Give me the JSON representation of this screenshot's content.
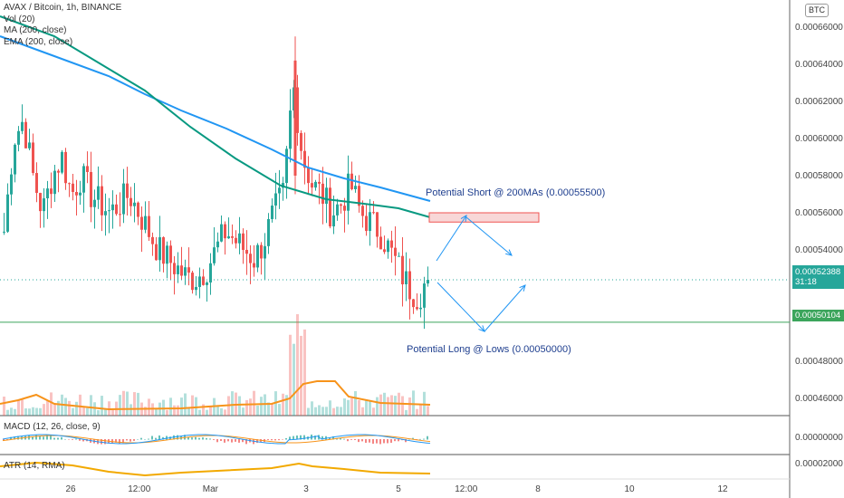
{
  "legend": {
    "symbol": "AVAX / Bitcoin, 1h, BINANCE",
    "vol": "Vol (20)",
    "ma": "MA (200, close)",
    "ema": "EMA (200, close)"
  },
  "indicators": {
    "macd": "MACD (12, 26, close, 9)",
    "atr": "ATR (14, RMA)"
  },
  "currency_badge": "BTC",
  "price_label": {
    "price": "0.00052388",
    "countdown": "31:18"
  },
  "level_label": "0.00050104",
  "annotations": {
    "short": "Potential Short @ 200MAs (0.00055500)",
    "long": "Potential Long @ Lows (0.00050000)"
  },
  "colors": {
    "up": "#26a69a",
    "down": "#ef5350",
    "ma": "#2196f3",
    "ema": "#089981",
    "vol_ma": "#f7931a",
    "atr": "#f2a900",
    "level": "#3ca55c",
    "zone": "#f8d7d7",
    "arrows": "#2196f3"
  },
  "chart_data": {
    "type": "candlestick",
    "y_axis_ticks": [
      "0.00066000",
      "0.00064000",
      "0.00062000",
      "0.00060000",
      "0.00058000",
      "0.00056000",
      "0.00054000",
      "0.00048000",
      "0.00046000"
    ],
    "indicator_ticks": {
      "macd": "0.00000000",
      "atr": "0.00002000"
    },
    "ylim": [
      0.00044,
      0.00067
    ],
    "x_axis_ticks": [
      "26",
      "12:00",
      "Mar",
      "3",
      "5",
      "12:00",
      "8",
      "10",
      "12"
    ],
    "last_price": 0.00052388,
    "horizontal_level": 0.00050104,
    "short_zone": [
      0.000555,
      0.00056
    ],
    "short_target": 0.000555,
    "long_target": 0.0005,
    "close_path": [
      0.00055,
      0.0006,
      0.00061,
      0.00058,
      0.00056,
      0.00058,
      0.00059,
      0.00057,
      0.00058,
      0.00057,
      0.000565,
      0.00056,
      0.000565,
      0.00057,
      0.00056,
      0.00055,
      0.00054,
      0.000535,
      0.00053,
      0.000525,
      0.000525,
      0.00053,
      0.00054,
      0.00055,
      0.000545,
      0.00054,
      0.000535,
      0.000545,
      0.00056,
      0.00057,
      0.00063,
      0.00059,
      0.000575,
      0.00057,
      0.00056,
      0.000565,
      0.000575,
      0.00056,
      0.000555,
      0.00055,
      0.00054,
      0.00053,
      0.00052,
      0.000515,
      0.000525
    ]
  }
}
